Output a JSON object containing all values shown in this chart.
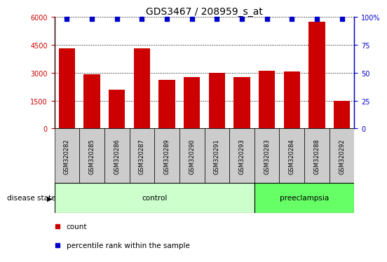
{
  "title": "GDS3467 / 208959_s_at",
  "samples": [
    "GSM320282",
    "GSM320285",
    "GSM320286",
    "GSM320287",
    "GSM320289",
    "GSM320290",
    "GSM320291",
    "GSM320293",
    "GSM320283",
    "GSM320284",
    "GSM320288",
    "GSM320292"
  ],
  "counts": [
    4300,
    2900,
    2100,
    4300,
    2600,
    2750,
    3000,
    2750,
    3100,
    3050,
    5750,
    1500
  ],
  "percentile_value": 5900,
  "bar_color": "#cc0000",
  "percentile_color": "#0000cc",
  "ylim_left": [
    0,
    6000
  ],
  "ylim_right": [
    0,
    100
  ],
  "yticks_left": [
    0,
    1500,
    3000,
    4500,
    6000
  ],
  "yticks_right": [
    0,
    25,
    50,
    75,
    100
  ],
  "control_samples": 8,
  "preeclampsia_samples": 4,
  "control_label": "control",
  "preeclampsia_label": "preeclampsia",
  "disease_state_label": "disease state",
  "legend_count_label": "count",
  "legend_percentile_label": "percentile rank within the sample",
  "control_bg": "#ccffcc",
  "preeclampsia_bg": "#66ff66",
  "sample_bg": "#cccccc",
  "title_fontsize": 10,
  "tick_fontsize": 7,
  "sample_fontsize": 6,
  "legend_fontsize": 7.5,
  "disease_fontsize": 7.5
}
